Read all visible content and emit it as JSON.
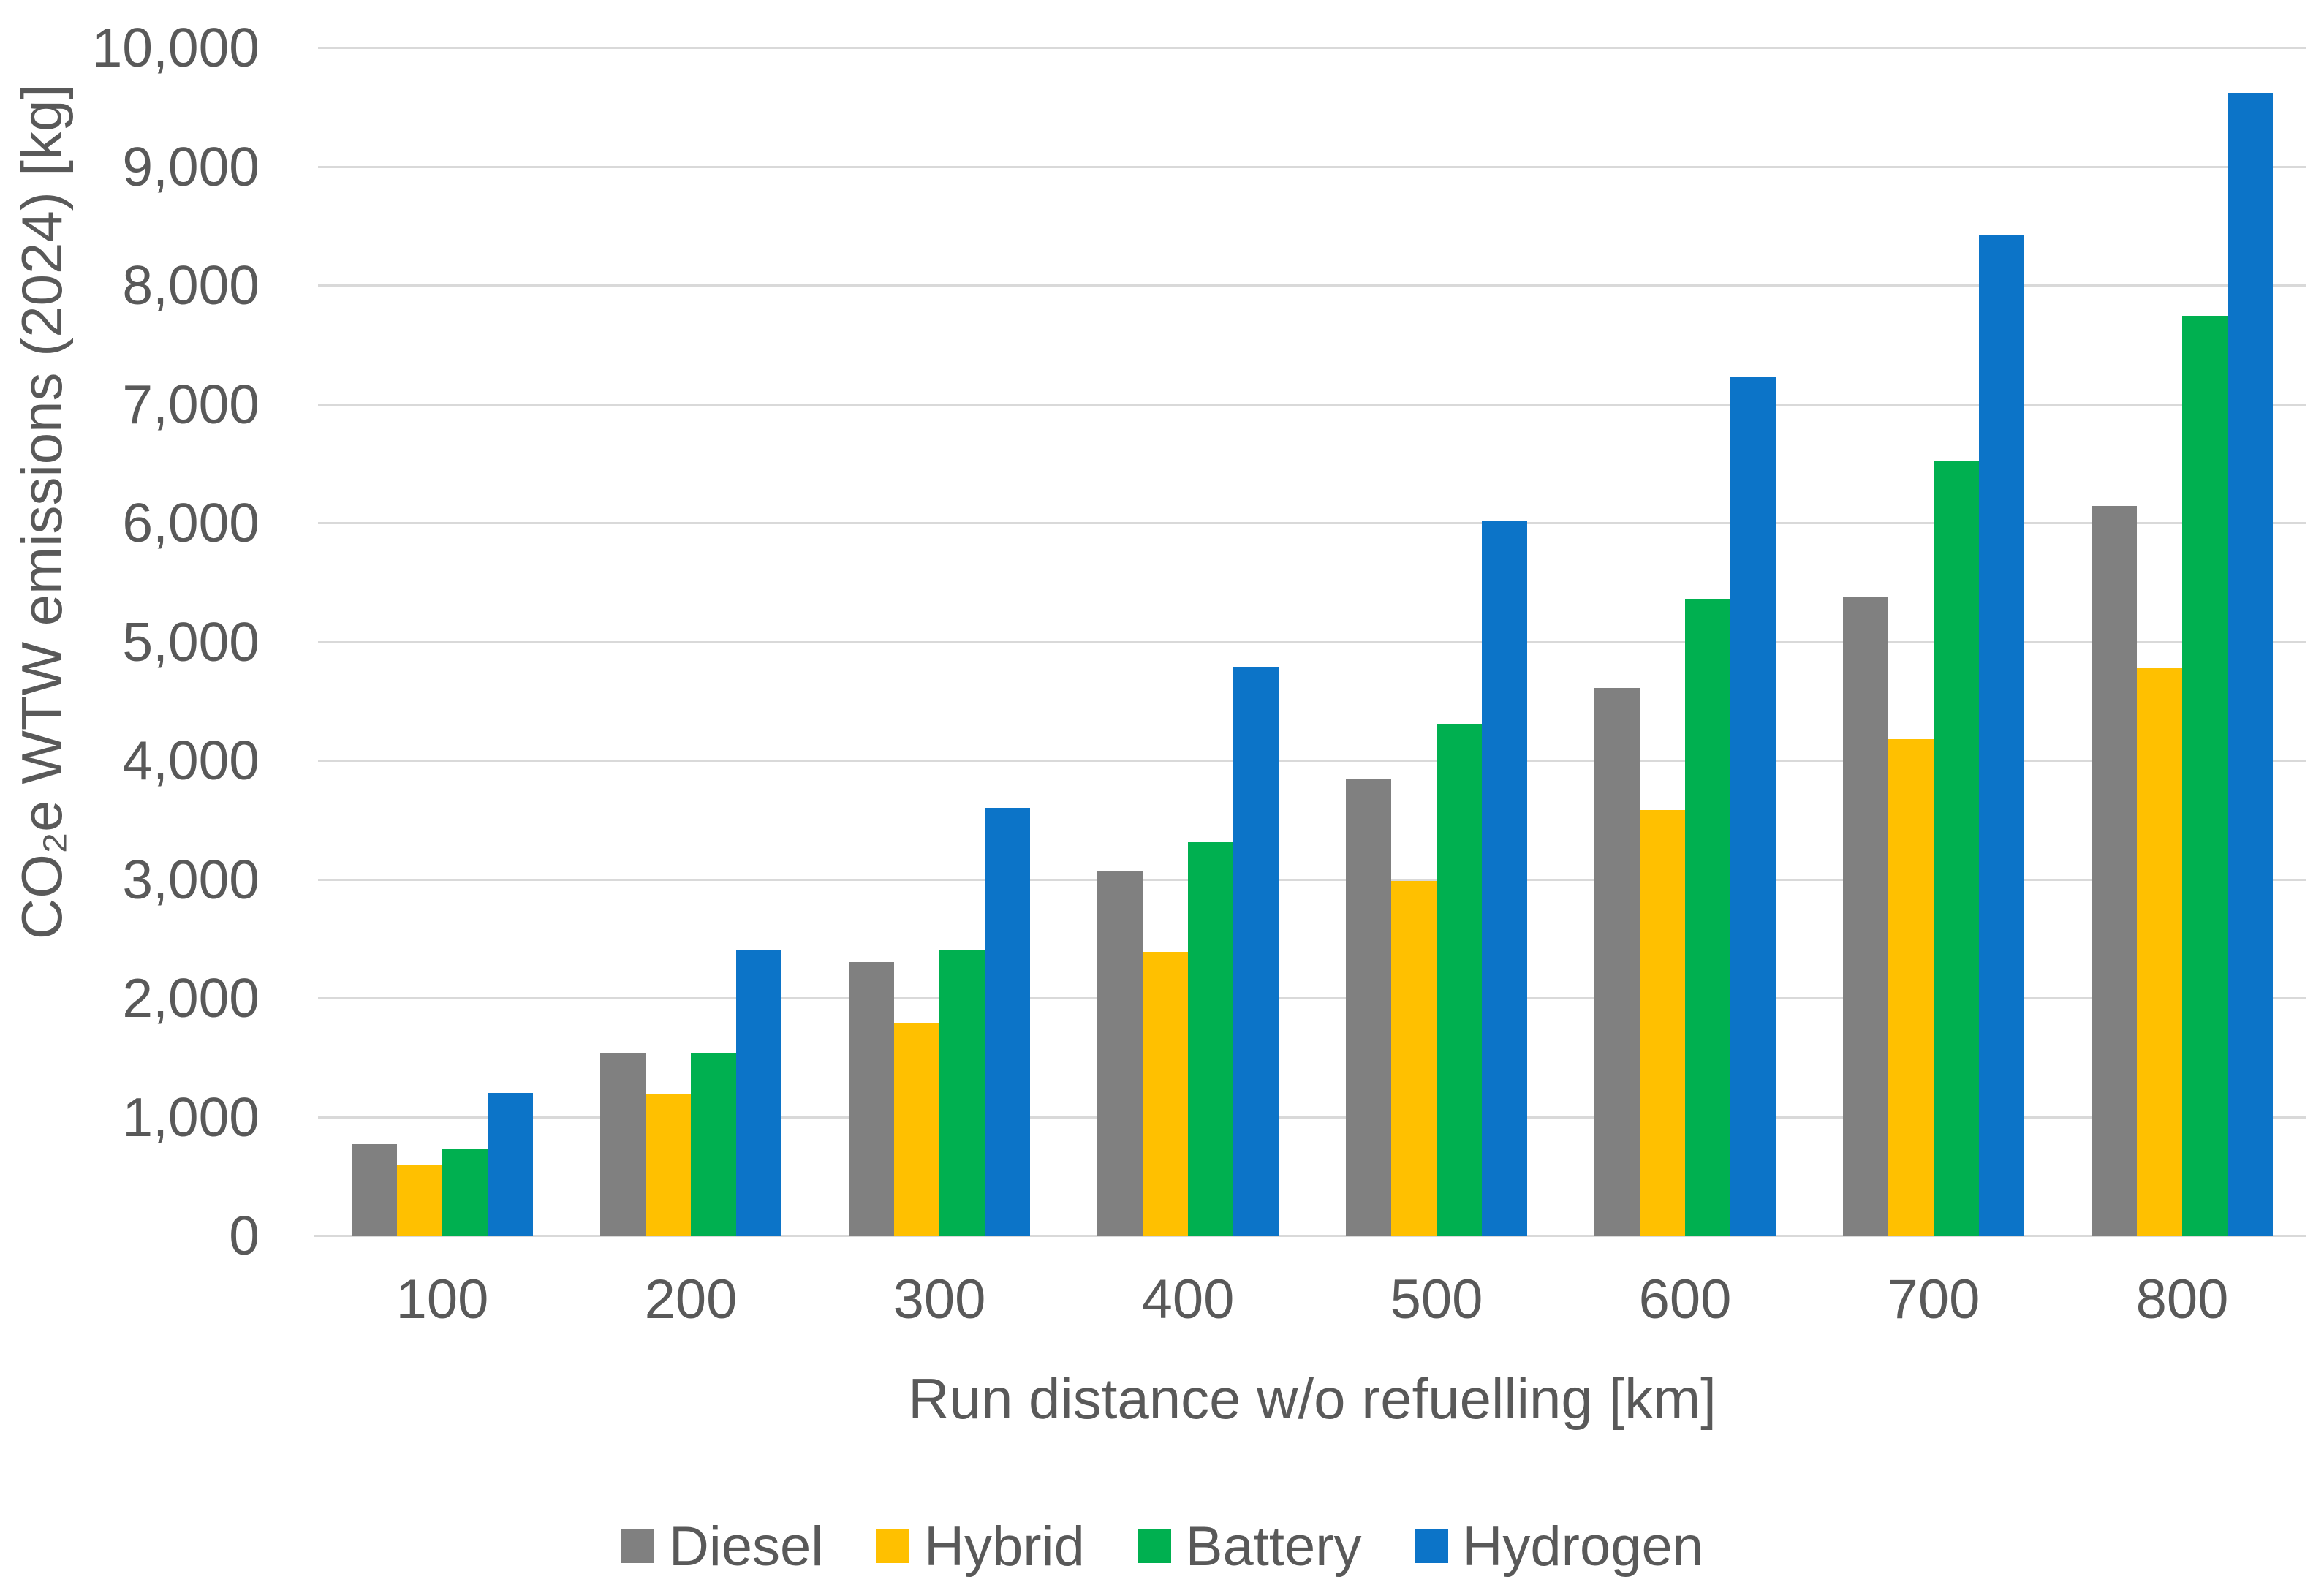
{
  "chart_data": {
    "type": "bar",
    "title": "",
    "categories": [
      "100",
      "200",
      "300",
      "400",
      "500",
      "600",
      "700",
      "800"
    ],
    "series": [
      {
        "name": "Diesel",
        "color": "#808080",
        "values": [
          768,
          1536,
          2304,
          3072,
          3840,
          4608,
          5376,
          6144
        ]
      },
      {
        "name": "Hybrid",
        "color": "#FFC000",
        "values": [
          597,
          1194,
          1791,
          2388,
          2985,
          3582,
          4179,
          4776
        ]
      },
      {
        "name": "Battery",
        "color": "#00B050",
        "values": [
          725,
          1530,
          2400,
          3310,
          4310,
          5360,
          6520,
          7740
        ]
      },
      {
        "name": "Hydrogen",
        "color": "#0C74C8",
        "values": [
          1200,
          2400,
          3600,
          4790,
          6020,
          7230,
          8420,
          9620
        ]
      }
    ],
    "xlabel": "Run distance w/o refuelling [km]",
    "ylabel": "CO₂e WTW emissions (2024) [kg]",
    "ylim": [
      0,
      10000
    ],
    "ytick_step": 1000,
    "grid": true,
    "legend_position": "bottom",
    "colors": {
      "gridline": "#D9D9D9",
      "axis_line": "#D9D9D9",
      "text": "#595959"
    }
  }
}
